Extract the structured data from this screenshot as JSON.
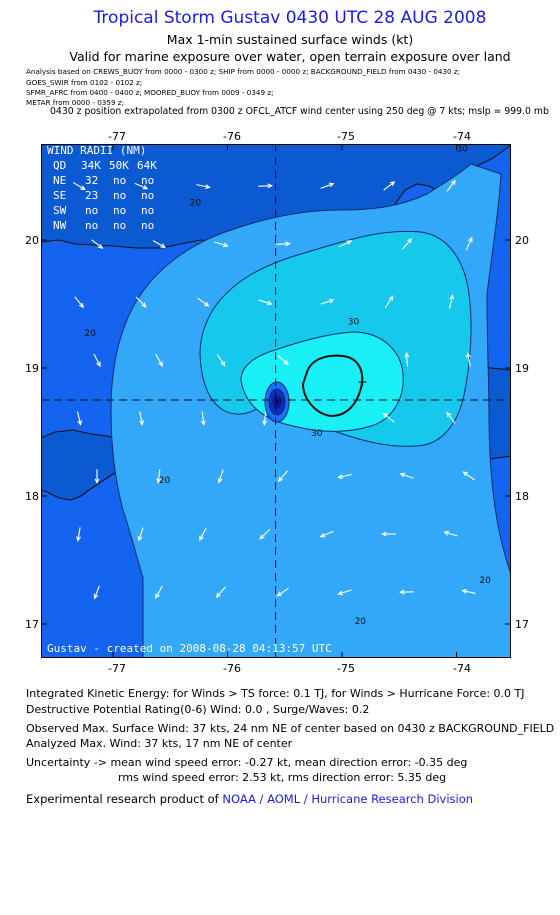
{
  "header": {
    "title": "Tropical Storm Gustav 0430 UTC 28 AUG 2008",
    "subtitle": "Max 1-min sustained surface winds (kt)",
    "validity": "Valid for marine exposure over water, open terrain exposure over land"
  },
  "analysis_sources": [
    "Analysis based on   CREWS_BUOY from 0000 - 0300 z;  SHIP from 0000 - 0000 z;  BACKGROUND_FIELD from 0430 - 0430 z;",
    "GOES_SWIR from 0102 - 0102 z;",
    "SFMR_AFRC from 0400 - 0400 z;   MOORED_BUOY from 0009 - 0349 z;",
    "METAR from 0000 - 0359 z;"
  ],
  "position_note": "0430 z position extrapolated from 0300 z OFCL_ATCF wind center using 250 deg @ 7 kts; mslp = 999.0 mb",
  "map": {
    "longitudes": [
      {
        "label": "-77",
        "lon": -77
      },
      {
        "label": "-76",
        "lon": -76
      },
      {
        "label": "-75",
        "lon": -75
      },
      {
        "label": "-74",
        "lon": -74
      }
    ],
    "latitudes": [
      {
        "label": "20",
        "lat": 20
      },
      {
        "label": "19",
        "lat": 19
      },
      {
        "label": "18",
        "lat": 18
      },
      {
        "label": "17",
        "lat": 17
      }
    ],
    "storm_center": {
      "lon": -75.58,
      "lat": 18.75
    },
    "max_wind_marker": {
      "lon": -74.82,
      "lat": 18.89
    },
    "contour_labels": [
      {
        "text": "20",
        "lon": -76.28,
        "lat": 20.27
      },
      {
        "text": "20",
        "lon": -77.2,
        "lat": 19.25
      },
      {
        "text": "20",
        "lon": -76.55,
        "lat": 18.1
      },
      {
        "text": "20",
        "lon": -74.84,
        "lat": 17.0
      },
      {
        "text": "20",
        "lon": -73.75,
        "lat": 17.32
      },
      {
        "text": "30",
        "lon": -74.9,
        "lat": 19.34
      },
      {
        "text": "30",
        "lon": -75.22,
        "lat": 18.47
      },
      {
        "text": "30",
        "lon": -73.95,
        "lat": 20.69
      }
    ],
    "wind_radii": {
      "title": "WIND RADII (NM)",
      "header": [
        "QD",
        "34K",
        "50K",
        "64K"
      ],
      "rows": [
        [
          "NE",
          "32",
          "no",
          "no"
        ],
        [
          "SE",
          "23",
          "no",
          "no"
        ],
        [
          "SW",
          "no",
          "no",
          "no"
        ],
        [
          "NW",
          "no",
          "no",
          "no"
        ]
      ]
    },
    "credit": "Gustav - created on 2008-08-28 04:13:57 UTC",
    "colors": {
      "ocean": "#1464f0",
      "land": "#0c5ad2",
      "band_20_30": "#33a8f8",
      "band_30_plus": "#15c8ec",
      "band_core": "#18f0f6"
    }
  },
  "footer": {
    "ike": "Integrated Kinetic Energy:  for Winds > TS force: 0.1 TJ,  for Winds > Hurricane Force: 0.0 TJ",
    "dpr": "Destructive Potential Rating(0-6)   Wind: 0.0 , Surge/Waves: 0.2",
    "obs_max": "Observed Max. Surface Wind: 37 kts, 24 nm NE of center based on 0430 z BACKGROUND_FIELD",
    "ana_max": "Analyzed Max. Wind: 37 kts, 17 nm NE of center",
    "uncertainty_1": "Uncertainty -> mean wind speed error:  -0.27 kt,   mean direction error:  -0.35 deg",
    "uncertainty_2": "rms wind speed error:  2.53 kt,   rms direction error: 5.35 deg",
    "product_prefix": "Experimental research product of",
    "product_org": "NOAA / AOML / Hurricane Research Division"
  }
}
